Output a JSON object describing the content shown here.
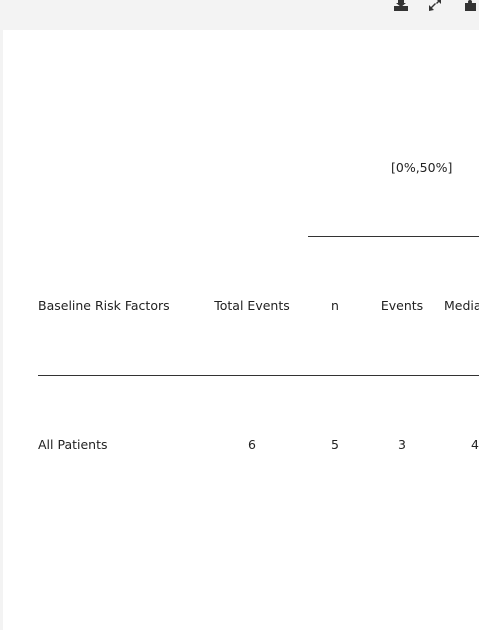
{
  "toolbar": {
    "icons": [
      "download-icon",
      "expand-icon",
      "puzzle-icon"
    ]
  },
  "table": {
    "group_header": "[0%,50%]",
    "columns": {
      "risk_factor": "Baseline Risk Factors",
      "total_events": "Total Events",
      "n": "n",
      "events": "Events",
      "median": "Media"
    },
    "rows": [
      {
        "risk_factor": "All Patients",
        "total_events": "6",
        "n": "5",
        "events": "3",
        "median": "4"
      }
    ]
  }
}
